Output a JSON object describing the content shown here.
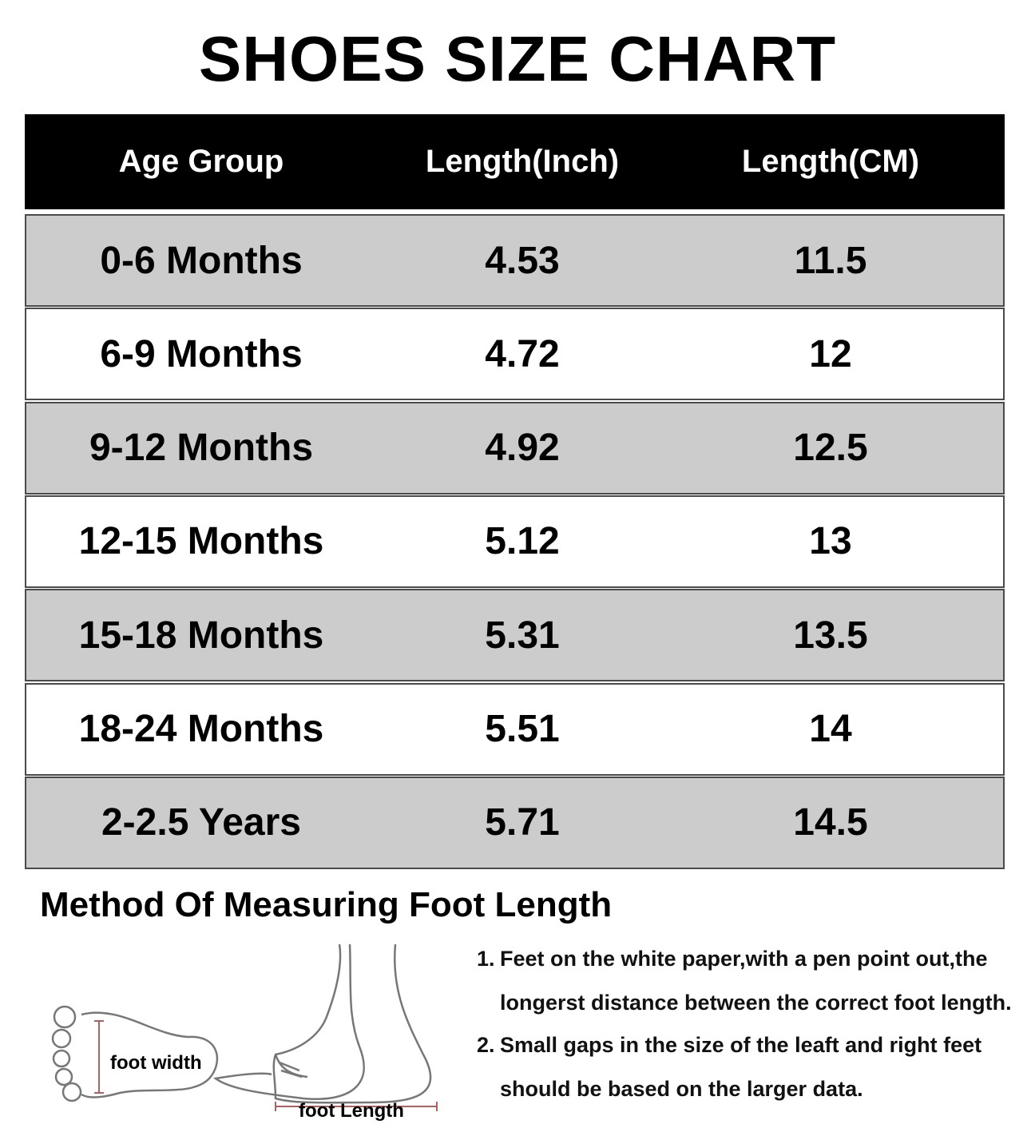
{
  "header": {
    "title": "SHOES SIZE CHART"
  },
  "table": {
    "columns": [
      "Age Group",
      "Length(Inch)",
      "Length(CM)"
    ],
    "rows": [
      [
        "0-6 Months",
        "4.53",
        "11.5"
      ],
      [
        "6-9 Months",
        "4.72",
        "12"
      ],
      [
        "9-12 Months",
        "4.92",
        "12.5"
      ],
      [
        "12-15 Months",
        "5.12",
        "13"
      ],
      [
        "15-18 Months",
        "5.31",
        "13.5"
      ],
      [
        "18-24 Months",
        "5.51",
        "14"
      ],
      [
        "2-2.5 Years",
        "5.71",
        "14.5"
      ]
    ]
  },
  "method": {
    "title": "Method Of Measuring Foot Length",
    "width_label": "foot width",
    "length_label": "foot Length",
    "steps": [
      {
        "number": "1.",
        "lines": [
          "Feet on the white paper,with a pen point out,the",
          "longerst distance between the correct foot length."
        ]
      },
      {
        "number": "2.",
        "lines": [
          "Small gaps in the size of the leaft and right feet",
          "should be based on the larger data."
        ]
      }
    ]
  }
}
